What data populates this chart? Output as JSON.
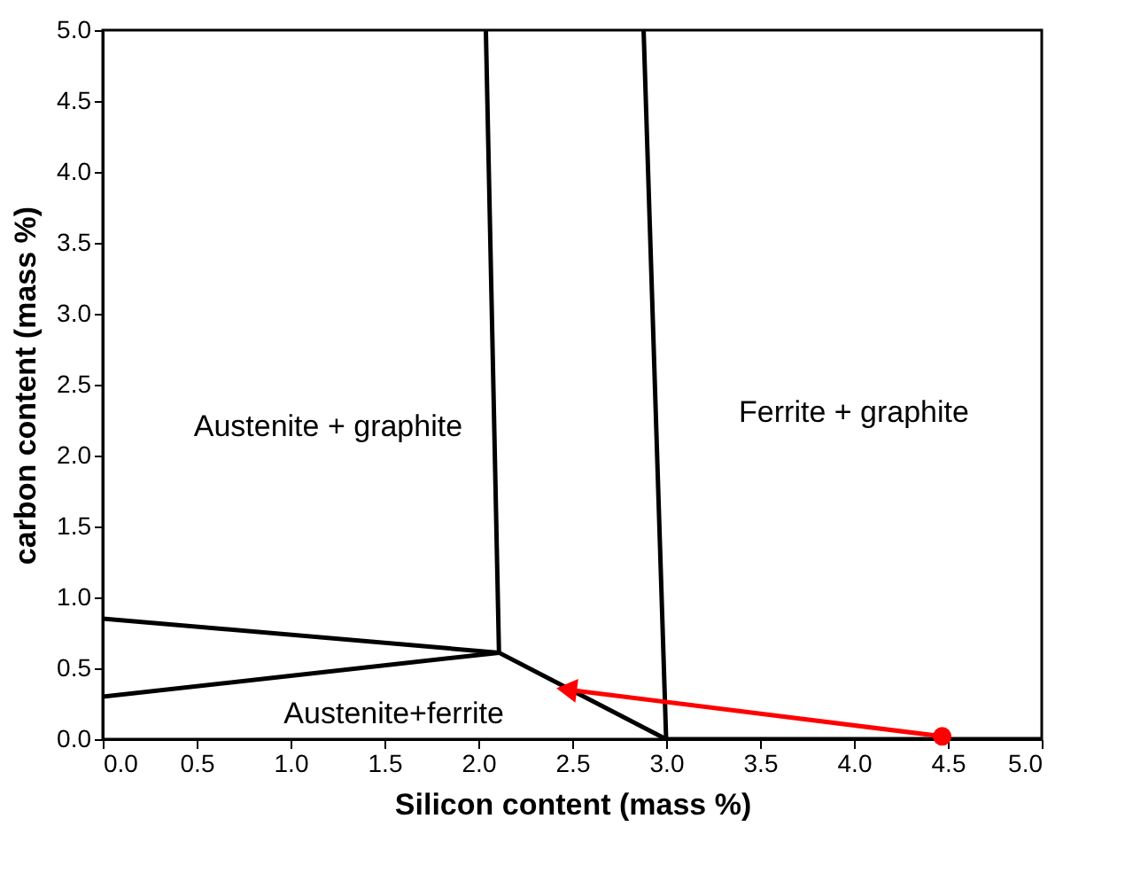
{
  "chart_data": {
    "type": "line",
    "xlabel": "Silicon content (mass %)",
    "ylabel": "carbon content (mass %)",
    "xlim": [
      0,
      5
    ],
    "ylim": [
      0,
      5
    ],
    "xticks": [
      {
        "value": 0,
        "label": "0.0"
      },
      {
        "value": 0.5,
        "label": "0.5"
      },
      {
        "value": 1,
        "label": "1.0"
      },
      {
        "value": 1.5,
        "label": "1.5"
      },
      {
        "value": 2,
        "label": "2.0"
      },
      {
        "value": 2.5,
        "label": "2.5"
      },
      {
        "value": 3,
        "label": "3.0"
      },
      {
        "value": 3.5,
        "label": "3.5"
      },
      {
        "value": 4,
        "label": "4.0"
      },
      {
        "value": 4.5,
        "label": "4.5"
      },
      {
        "value": 5,
        "label": "5.0"
      }
    ],
    "yticks": [
      {
        "value": 0,
        "label": "0.0"
      },
      {
        "value": 0.5,
        "label": "0.5"
      },
      {
        "value": 1,
        "label": "1.0"
      },
      {
        "value": 1.5,
        "label": "1.5"
      },
      {
        "value": 2,
        "label": "2.0"
      },
      {
        "value": 2.5,
        "label": "2.5"
      },
      {
        "value": 3,
        "label": "3.0"
      },
      {
        "value": 3.5,
        "label": "3.5"
      },
      {
        "value": 4,
        "label": "4.0"
      },
      {
        "value": 4.5,
        "label": "4.5"
      },
      {
        "value": 5,
        "label": "5.0"
      }
    ],
    "grid": false,
    "line_style": "solid",
    "series": [
      {
        "color": "#000000",
        "x": [
          2.04,
          2.11,
          3.0,
          5.0
        ],
        "values": [
          5.0,
          0.61,
          0.0,
          0.0
        ]
      },
      {
        "color": "#000000",
        "x": [
          2.88,
          3.0
        ],
        "values": [
          5.0,
          0.0
        ]
      },
      {
        "color": "#000000",
        "x": [
          0,
          2.11,
          0
        ],
        "values": [
          0.85,
          0.61,
          0.3
        ]
      },
      {
        "color": "#ff0000",
        "x": [
          4.47,
          2.47
        ],
        "values": [
          0.02,
          0.35
        ]
      },
      {
        "type": "scatter",
        "color": "#ff0000",
        "marker": "circle",
        "x": [
          4.47
        ],
        "values": [
          0.02
        ]
      }
    ],
    "annotations": [
      "Austenite + graphite",
      "Ferrite + graphite",
      "Austenite+ferrite"
    ]
  }
}
